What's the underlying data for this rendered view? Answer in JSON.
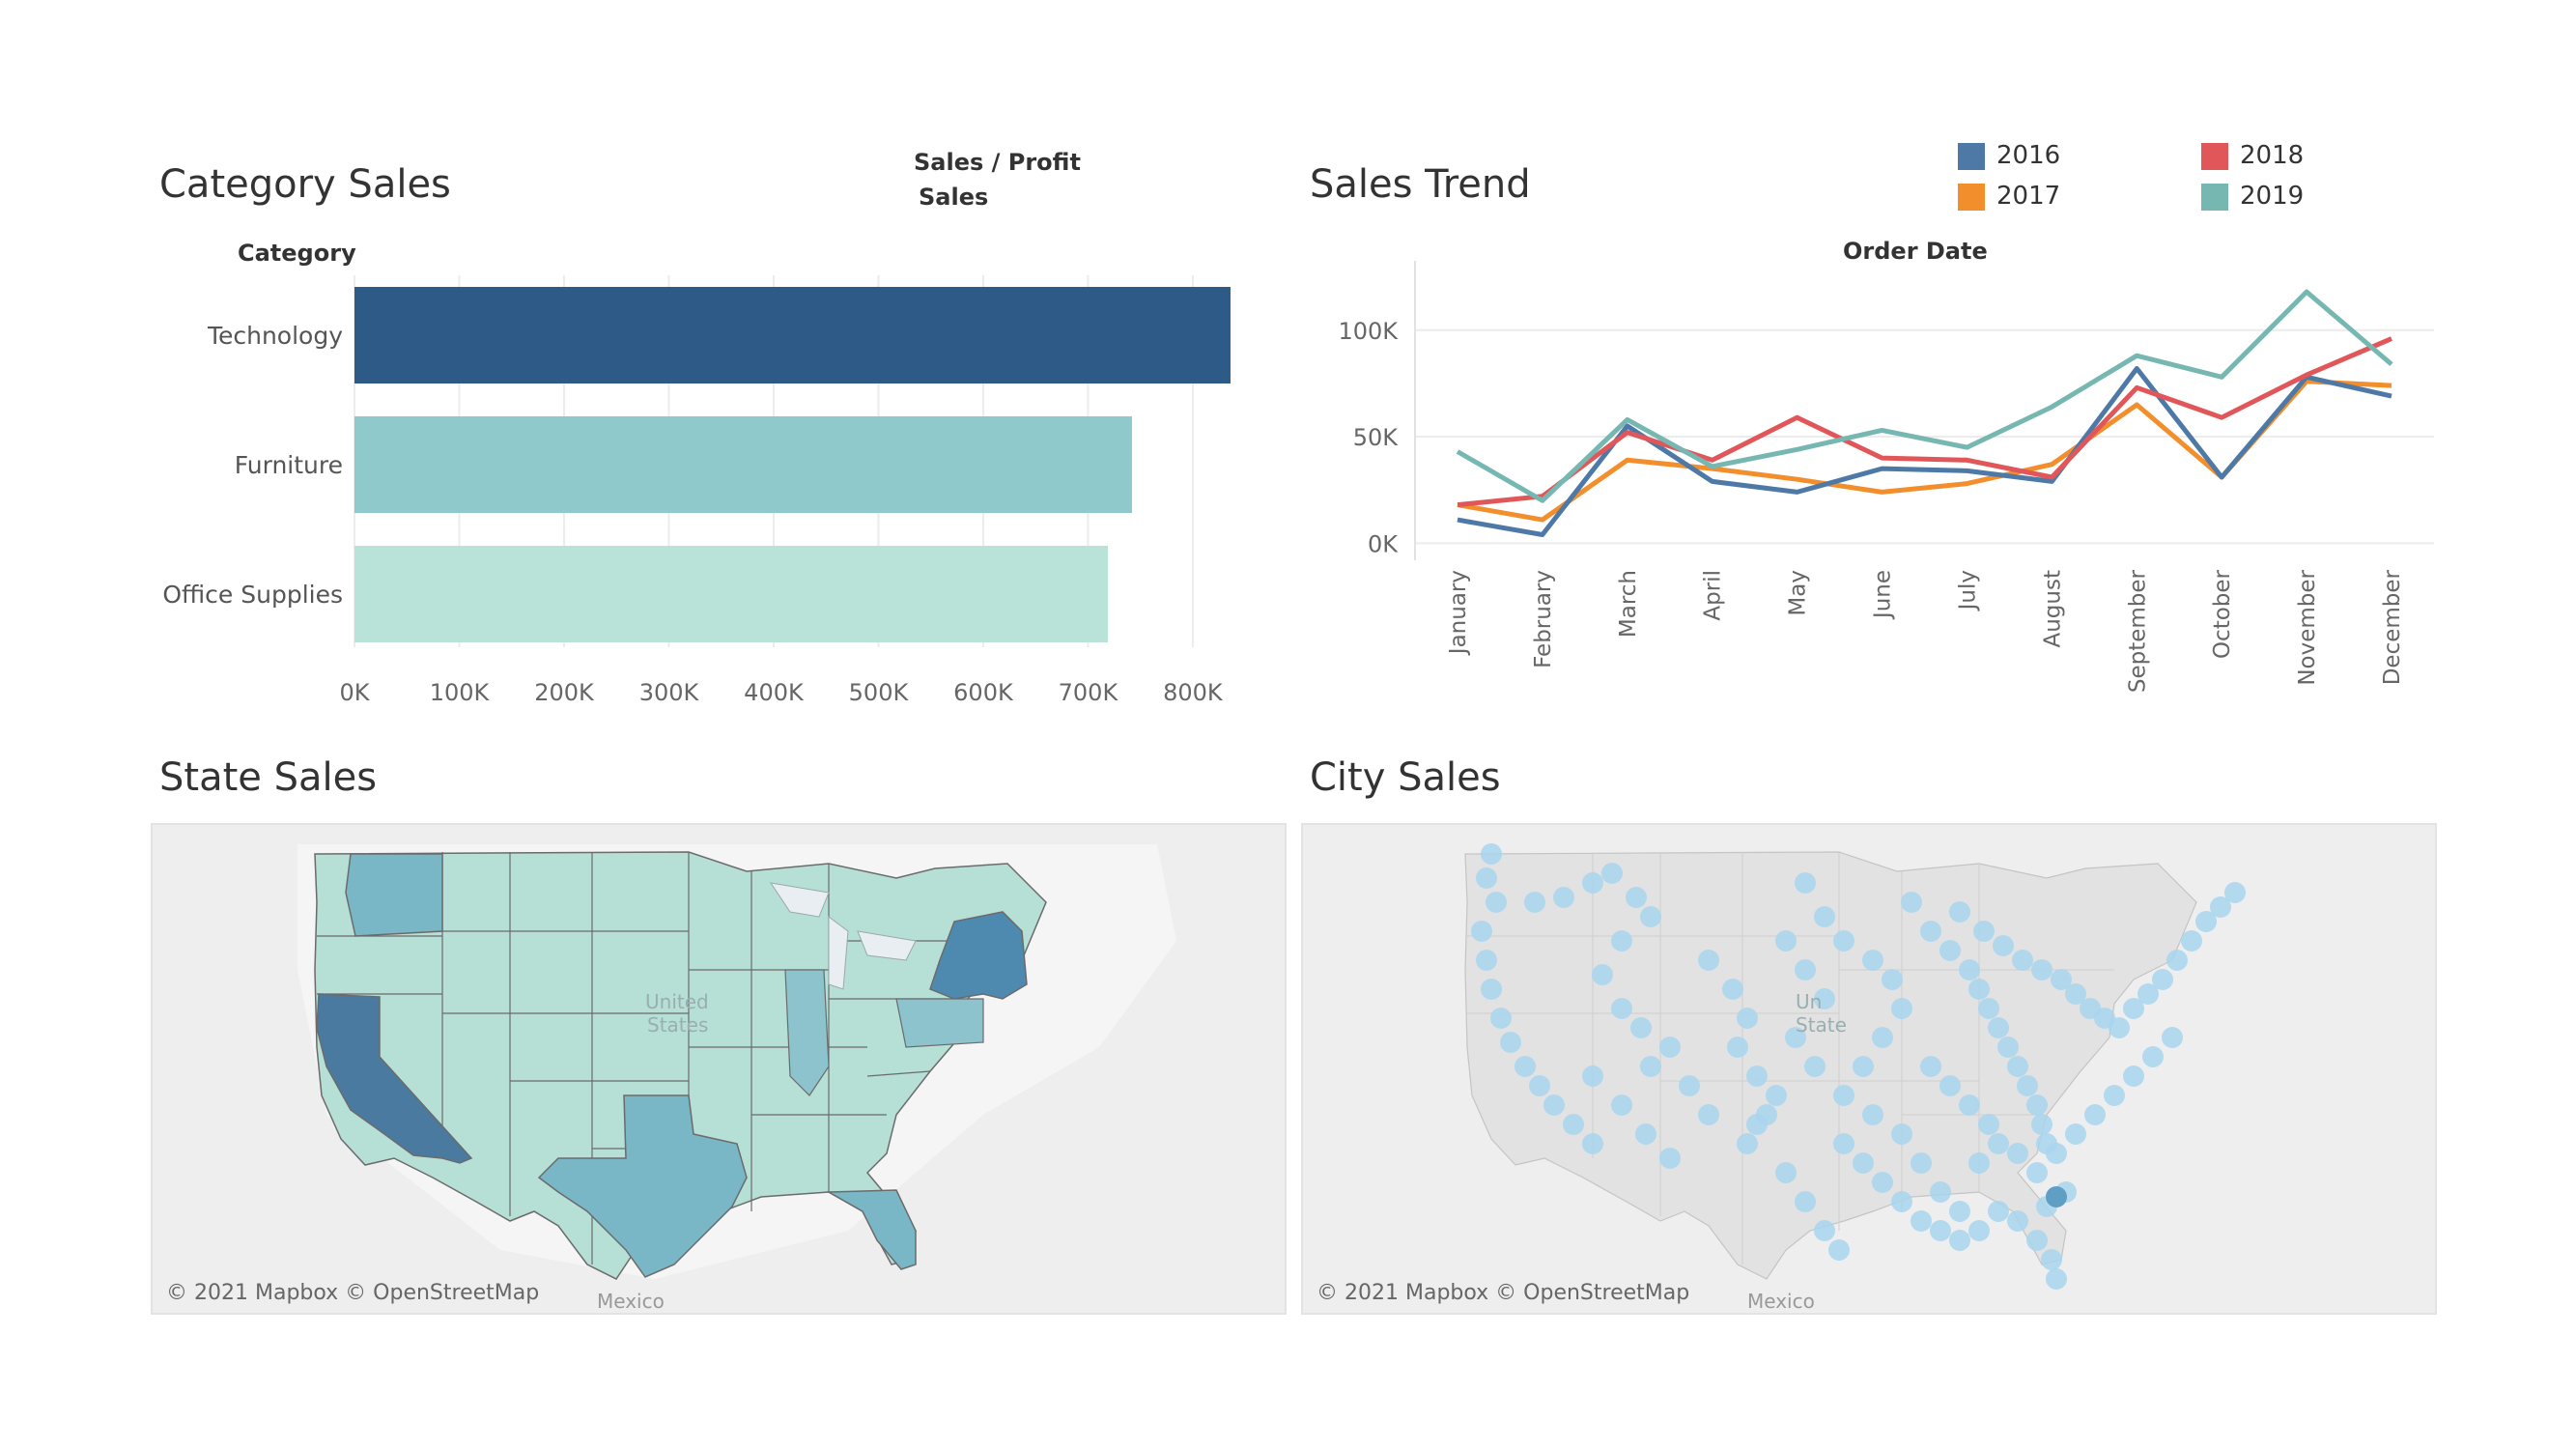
{
  "category_sales": {
    "title": "Category Sales",
    "header_line1": "Sales / Profit",
    "header_line2": "Sales",
    "category_label": "Category"
  },
  "sales_trend": {
    "title": "Sales Trend",
    "subheader": "Order Date"
  },
  "state_sales": {
    "title": "State Sales",
    "credit": "© 2021 Mapbox © OpenStreetMap",
    "map_labels": [
      "United States",
      "Mexico"
    ]
  },
  "city_sales": {
    "title": "City Sales",
    "credit": "© 2021 Mapbox © OpenStreetMap",
    "map_labels": [
      "United States",
      "Mexico"
    ]
  },
  "colors": {
    "technology": "#2e5a87",
    "furniture": "#8fc9cc",
    "office": "#b9e3d8",
    "y2016": "#4e79a7",
    "y2017": "#f28e2b",
    "y2018": "#e15759",
    "y2019": "#76b7b2",
    "state_dark": "#4a7aa0",
    "state_mid": "#79b6c6",
    "state_light": "#b6dfd6",
    "city_dot": "#a8d5ee"
  },
  "chart_data": [
    {
      "type": "bar",
      "orientation": "horizontal",
      "categories": [
        "Technology",
        "Furniture",
        "Office Supplies"
      ],
      "values": [
        836000,
        742000,
        719000
      ],
      "xlabel": "",
      "ylabel": "Category",
      "xlim": [
        0,
        860000
      ],
      "ticks": [
        "0K",
        "100K",
        "200K",
        "300K",
        "400K",
        "500K",
        "600K",
        "700K",
        "800K"
      ],
      "tick_values": [
        0,
        100000,
        200000,
        300000,
        400000,
        500000,
        600000,
        700000,
        800000
      ],
      "grid": true
    },
    {
      "type": "line",
      "categories": [
        "January",
        "February",
        "March",
        "April",
        "May",
        "June",
        "July",
        "August",
        "September",
        "October",
        "November",
        "December"
      ],
      "series": [
        {
          "name": "2016",
          "values": [
            11000,
            4000,
            55000,
            29000,
            24000,
            35000,
            34000,
            29000,
            82000,
            31000,
            78000,
            69000
          ]
        },
        {
          "name": "2017",
          "values": [
            18000,
            11000,
            39000,
            35000,
            30000,
            24000,
            28000,
            37000,
            65000,
            31000,
            76000,
            74000
          ]
        },
        {
          "name": "2018",
          "values": [
            18000,
            22000,
            52000,
            39000,
            59000,
            40000,
            39000,
            31000,
            73000,
            59000,
            79000,
            96000
          ]
        },
        {
          "name": "2019",
          "values": [
            43000,
            20000,
            58000,
            36000,
            44000,
            53000,
            45000,
            64000,
            88000,
            78000,
            118000,
            84000
          ]
        }
      ],
      "ylim": [
        -8000,
        128000
      ],
      "ticks": [
        "0K",
        "50K",
        "100K"
      ],
      "tick_values": [
        0,
        50000,
        100000
      ],
      "legend": "top-right",
      "grid": true
    }
  ]
}
